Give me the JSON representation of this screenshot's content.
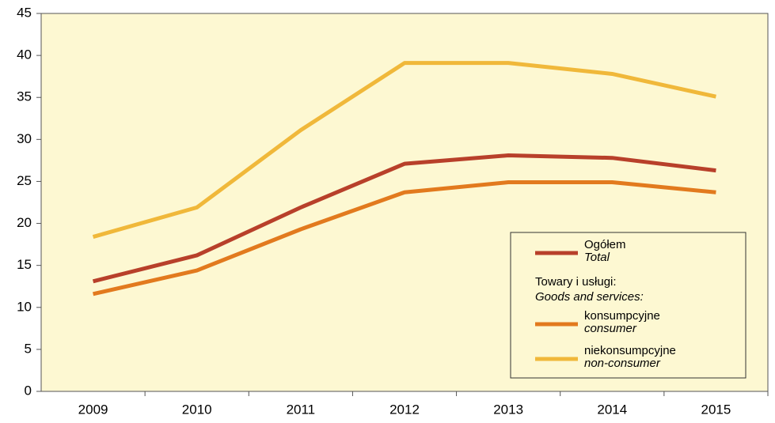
{
  "chart_data": {
    "type": "line",
    "categories": [
      "2009",
      "2010",
      "2011",
      "2012",
      "2013",
      "2014",
      "2015"
    ],
    "series": [
      {
        "name": "Ogółem",
        "name_en": "Total",
        "color": "#b8402a",
        "values": [
          13.1,
          16.2,
          21.9,
          27.1,
          28.1,
          27.8,
          26.3
        ]
      },
      {
        "name": "konsumpcyjne",
        "name_en": "consumer",
        "color": "#e27a1e",
        "values": [
          11.6,
          14.4,
          19.3,
          23.7,
          24.9,
          24.9,
          23.7
        ]
      },
      {
        "name": "niekonsumpcyjne",
        "name_en": "non-consumer",
        "color": "#f0b83a",
        "values": [
          18.4,
          21.9,
          31.1,
          39.1,
          39.1,
          37.8,
          35.1
        ]
      }
    ],
    "legend_group": "Towary i usługi:",
    "legend_group_en": "Goods and services:",
    "ylim": [
      0,
      45
    ],
    "yticks": [
      0,
      5,
      10,
      15,
      20,
      25,
      30,
      35,
      40,
      45
    ],
    "grid": false,
    "background": "#fdf8d2"
  }
}
